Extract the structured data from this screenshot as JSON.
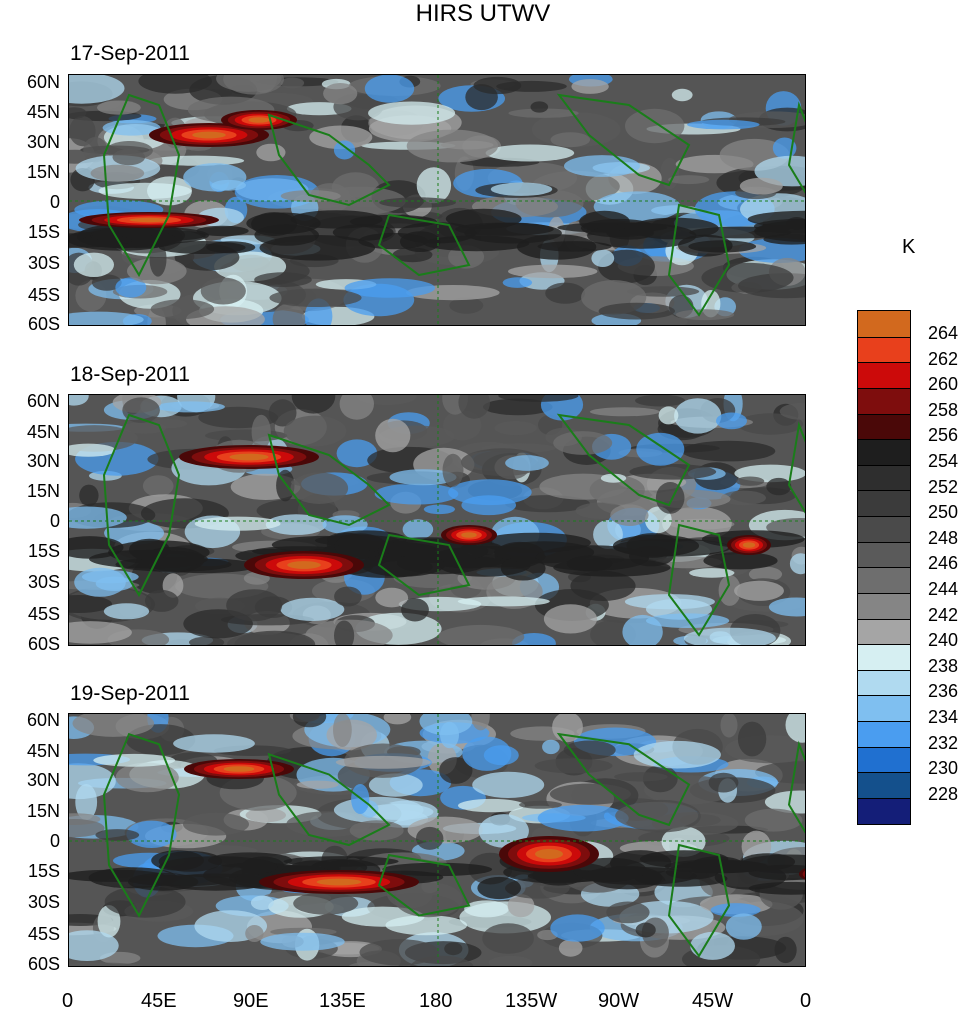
{
  "title": "HIRS UTWV",
  "panels": [
    {
      "date": "17-Sep-2011"
    },
    {
      "date": "18-Sep-2011"
    },
    {
      "date": "19-Sep-2011"
    }
  ],
  "lat_labels": [
    "60N",
    "45N",
    "30N",
    "15N",
    "0",
    "15S",
    "30S",
    "45S",
    "60S"
  ],
  "lon_labels": [
    "0",
    "45E",
    "90E",
    "135E",
    "180",
    "135W",
    "90W",
    "45W",
    "0"
  ],
  "colorbar": {
    "units": "K",
    "labels": [
      "264",
      "262",
      "260",
      "258",
      "256",
      "254",
      "252",
      "250",
      "248",
      "246",
      "244",
      "242",
      "240",
      "238",
      "236",
      "234",
      "232",
      "230",
      "228"
    ],
    "colors": [
      "#d2691e",
      "#e8401c",
      "#cc0a0a",
      "#7e0d0d",
      "#4a0808",
      "#1e1e1e",
      "#2e2e2e",
      "#3b3b3b",
      "#4a4a4a",
      "#5a5a5a",
      "#6e6e6e",
      "#858585",
      "#a5a5a5",
      "#d6eff2",
      "#b0daf0",
      "#7fbff0",
      "#4a9df0",
      "#2070d0",
      "#14508c",
      "#141e78"
    ]
  },
  "colors": {
    "coastline": "#1a7d1a",
    "background_gray": "#5a5a5a"
  }
}
